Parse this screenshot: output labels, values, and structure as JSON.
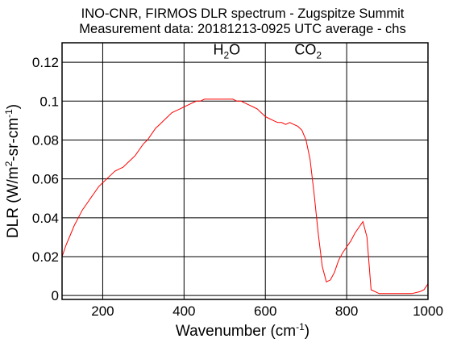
{
  "chart_data": {
    "type": "line",
    "title": "INO-CNR, FIRMOS DLR spectrum - Zugspitze Summit",
    "subtitle": "Measurement data: 20181213-0925 UTC average - chs",
    "xlabel": {
      "main": "Wavenumber (cm",
      "sup": "-1",
      "close": ")"
    },
    "ylabel": {
      "part1": "DLR (W/m",
      "sup1": "2",
      "part2": "-sr-cm",
      "sup2": "-1",
      "close": ")"
    },
    "xlim": [
      100,
      1000
    ],
    "ylim": [
      -0.002,
      0.13
    ],
    "xticks": [
      200,
      400,
      600,
      800,
      1000
    ],
    "yticks": [
      0,
      0.02,
      0.04,
      0.06,
      0.08,
      0.1,
      0.12
    ],
    "xtick_labels": [
      "200",
      "400",
      "600",
      "800",
      "1000"
    ],
    "ytick_labels": [
      "0",
      "0.02",
      "0.04",
      "0.06",
      "0.08",
      "0.1",
      "0.12"
    ],
    "grid": true,
    "line_color": "#ff0000",
    "annotations": [
      {
        "main": "H",
        "sub": "2",
        "tail": "O",
        "x": 505,
        "y": 0.124
      },
      {
        "main": "CO",
        "sub": "2",
        "tail": "",
        "x": 705,
        "y": 0.124
      }
    ],
    "series": [
      {
        "x": [
          100,
          110,
          120,
          130,
          140,
          150,
          160,
          170,
          180,
          190,
          200,
          210,
          220,
          230,
          240,
          250,
          260,
          270,
          280,
          290,
          300,
          310,
          320,
          330,
          340,
          350,
          360,
          370,
          380,
          390,
          400,
          410,
          420,
          430,
          440,
          450,
          460,
          470,
          480,
          490,
          500,
          510,
          520,
          530,
          540,
          550,
          560,
          570,
          580,
          590,
          600,
          610,
          620,
          630,
          640,
          650,
          660,
          670,
          680,
          690,
          700,
          710,
          720,
          730,
          740,
          750,
          760,
          770,
          780,
          790,
          800,
          810,
          820,
          830,
          840,
          850,
          860,
          880,
          900,
          920,
          940,
          960,
          980,
          990,
          1000
        ],
        "y": [
          0.02,
          0.026,
          0.031,
          0.036,
          0.04,
          0.044,
          0.047,
          0.05,
          0.053,
          0.056,
          0.058,
          0.06,
          0.062,
          0.064,
          0.065,
          0.066,
          0.068,
          0.07,
          0.072,
          0.075,
          0.078,
          0.08,
          0.083,
          0.086,
          0.088,
          0.09,
          0.092,
          0.094,
          0.095,
          0.096,
          0.097,
          0.098,
          0.099,
          0.1,
          0.1,
          0.101,
          0.101,
          0.101,
          0.101,
          0.101,
          0.101,
          0.101,
          0.101,
          0.1,
          0.1,
          0.099,
          0.098,
          0.097,
          0.096,
          0.094,
          0.092,
          0.091,
          0.09,
          0.089,
          0.089,
          0.088,
          0.089,
          0.088,
          0.087,
          0.085,
          0.08,
          0.07,
          0.052,
          0.032,
          0.015,
          0.007,
          0.008,
          0.012,
          0.018,
          0.022,
          0.025,
          0.028,
          0.032,
          0.035,
          0.038,
          0.03,
          0.003,
          0.001,
          0.001,
          0.001,
          0.001,
          0.001,
          0.002,
          0.003,
          0.006
        ]
      }
    ]
  }
}
